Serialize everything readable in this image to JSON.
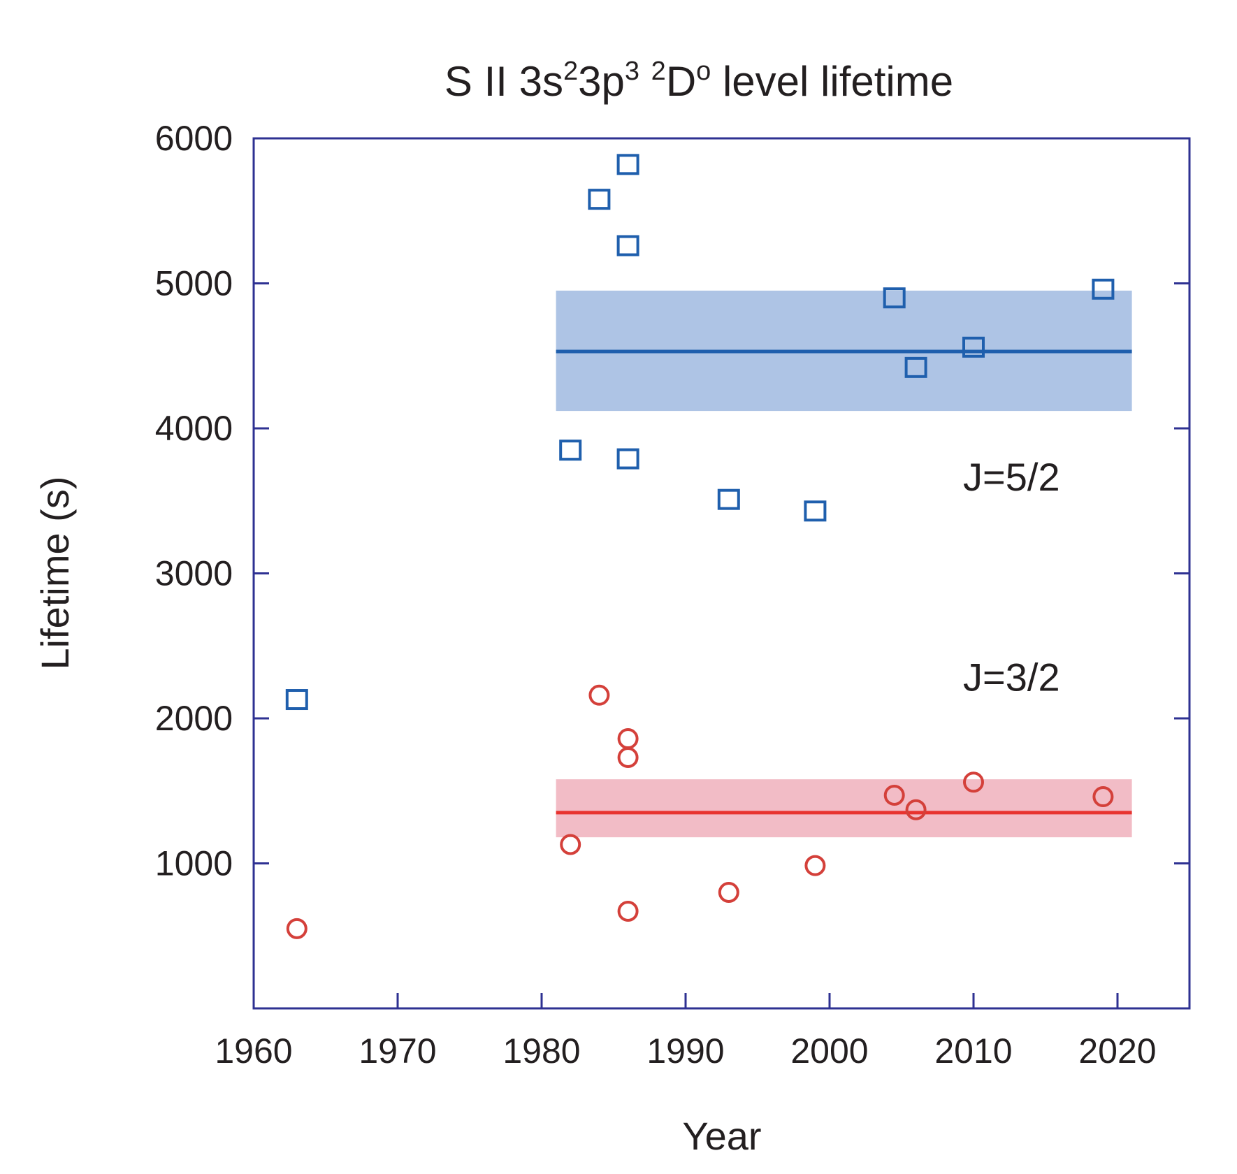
{
  "chart_data": {
    "type": "scatter",
    "title_parts": [
      {
        "text": "S II  3s",
        "sup": false
      },
      {
        "text": "2",
        "sup": true
      },
      {
        "text": "3p",
        "sup": false
      },
      {
        "text": "3",
        "sup": true
      },
      {
        "text": " ",
        "sup": false
      },
      {
        "text": "2",
        "sup": true
      },
      {
        "text": "D",
        "sup": false
      },
      {
        "text": "o",
        "sup": true
      },
      {
        "text": " level lifetime",
        "sup": false
      }
    ],
    "xlabel": "Year",
    "ylabel": "Lifetime (s)",
    "xlim": [
      1960,
      2025
    ],
    "ylim": [
      0,
      6000
    ],
    "xticks": [
      1960,
      1970,
      1980,
      1990,
      2000,
      2010,
      2020
    ],
    "yticks": [
      1000,
      2000,
      3000,
      4000,
      5000,
      6000
    ],
    "series": [
      {
        "name": "J=5/2",
        "marker": "square",
        "color": "#1f5fad",
        "points": [
          {
            "x": 1963,
            "y": 2130
          },
          {
            "x": 1982,
            "y": 3850
          },
          {
            "x": 1984,
            "y": 5580
          },
          {
            "x": 1986,
            "y": 5820
          },
          {
            "x": 1986,
            "y": 5260
          },
          {
            "x": 1986,
            "y": 3790
          },
          {
            "x": 1993,
            "y": 3510
          },
          {
            "x": 1999,
            "y": 3430
          },
          {
            "x": 2004.5,
            "y": 4900
          },
          {
            "x": 2006,
            "y": 4420
          },
          {
            "x": 2010,
            "y": 4560
          },
          {
            "x": 2019,
            "y": 4960
          }
        ],
        "mean": {
          "value": 4530,
          "x_start": 1981,
          "x_end": 2021,
          "color": "#1f5fad"
        },
        "band": {
          "low": 4120,
          "high": 4950,
          "x_start": 1981,
          "x_end": 2021,
          "color": "#aec4e5"
        }
      },
      {
        "name": "J=3/2",
        "marker": "circle",
        "color": "#d4403a",
        "points": [
          {
            "x": 1963,
            "y": 550
          },
          {
            "x": 1982,
            "y": 1130
          },
          {
            "x": 1984,
            "y": 2160
          },
          {
            "x": 1986,
            "y": 1860
          },
          {
            "x": 1986,
            "y": 1730
          },
          {
            "x": 1986,
            "y": 670
          },
          {
            "x": 1993,
            "y": 800
          },
          {
            "x": 1999,
            "y": 985
          },
          {
            "x": 2004.5,
            "y": 1470
          },
          {
            "x": 2006,
            "y": 1370
          },
          {
            "x": 2010,
            "y": 1560
          },
          {
            "x": 2019,
            "y": 1460
          }
        ],
        "mean": {
          "value": 1350,
          "x_start": 1981,
          "x_end": 2021,
          "color": "#e8332f"
        },
        "band": {
          "low": 1180,
          "high": 1580,
          "x_start": 1981,
          "x_end": 2021,
          "color": "#f2bcc6"
        }
      }
    ],
    "labels": [
      {
        "series": "J=5/2",
        "text": "J=5/2",
        "x": 2016,
        "y": 3570
      },
      {
        "series": "J=3/2",
        "text": "J=3/2",
        "x": 2016,
        "y": 2190
      }
    ],
    "axis_color": "#2e3192",
    "grid": false
  }
}
